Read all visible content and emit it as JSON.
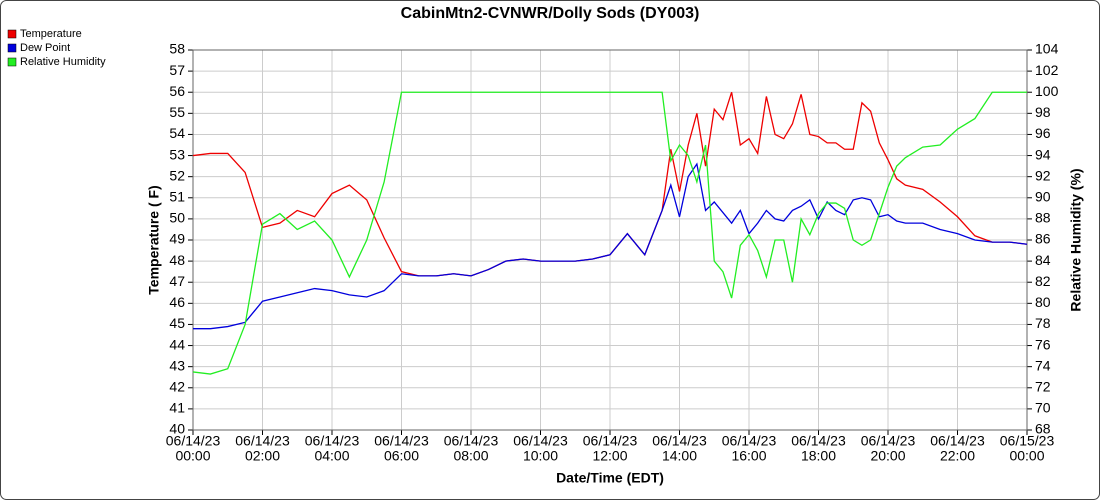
{
  "chart_data": {
    "type": "line",
    "title": "CabinMtn2-CVNWR/Dolly Sods (DY003)",
    "x_label": "Date/Time (EDT)",
    "y_label": "Temperature ( F)",
    "y2_label": "Relative Humidity (%)",
    "legend": "top-left",
    "grid": true,
    "x": [
      0,
      0.5,
      1,
      1.5,
      2,
      2.5,
      3,
      3.5,
      4,
      4.5,
      5,
      5.5,
      6,
      6.5,
      7,
      7.5,
      8,
      8.5,
      9,
      9.5,
      10,
      10.5,
      11,
      11.5,
      12,
      12.5,
      13,
      13.5,
      13.75,
      14,
      14.25,
      14.5,
      14.75,
      15,
      15.25,
      15.5,
      15.75,
      16,
      16.25,
      16.5,
      16.75,
      17,
      17.25,
      17.5,
      17.75,
      18,
      18.25,
      18.5,
      18.75,
      19,
      19.25,
      19.5,
      19.75,
      20,
      20.25,
      20.5,
      21,
      21.5,
      22,
      22.5,
      23,
      23.5,
      24
    ],
    "xlim": [
      0,
      24
    ],
    "xticks": [
      {
        "value": 0,
        "label": [
          "06/14/23",
          "00:00"
        ]
      },
      {
        "value": 2,
        "label": [
          "06/14/23",
          "02:00"
        ]
      },
      {
        "value": 4,
        "label": [
          "06/14/23",
          "04:00"
        ]
      },
      {
        "value": 6,
        "label": [
          "06/14/23",
          "06:00"
        ]
      },
      {
        "value": 8,
        "label": [
          "06/14/23",
          "08:00"
        ]
      },
      {
        "value": 10,
        "label": [
          "06/14/23",
          "10:00"
        ]
      },
      {
        "value": 12,
        "label": [
          "06/14/23",
          "12:00"
        ]
      },
      {
        "value": 14,
        "label": [
          "06/14/23",
          "14:00"
        ]
      },
      {
        "value": 16,
        "label": [
          "06/14/23",
          "16:00"
        ]
      },
      {
        "value": 18,
        "label": [
          "06/14/23",
          "18:00"
        ]
      },
      {
        "value": 20,
        "label": [
          "06/14/23",
          "20:00"
        ]
      },
      {
        "value": 22,
        "label": [
          "06/14/23",
          "22:00"
        ]
      },
      {
        "value": 24,
        "label": [
          "06/15/23",
          "00:00"
        ]
      }
    ],
    "ylim": [
      40,
      58
    ],
    "yticks": [
      40,
      41,
      42,
      43,
      44,
      45,
      46,
      47,
      48,
      49,
      50,
      51,
      52,
      53,
      54,
      55,
      56,
      57,
      58
    ],
    "y2lim": [
      68,
      104
    ],
    "y2ticks": [
      68,
      70,
      72,
      74,
      76,
      78,
      80,
      82,
      84,
      86,
      88,
      90,
      92,
      94,
      96,
      98,
      100,
      102,
      104
    ],
    "series": [
      {
        "name": "Temperature",
        "color": "#ee0000",
        "values": [
          53.0,
          53.1,
          53.1,
          52.2,
          49.6,
          49.8,
          50.4,
          50.1,
          51.2,
          51.6,
          50.9,
          49.1,
          47.5,
          47.3,
          47.3,
          47.4,
          47.3,
          47.6,
          48.0,
          48.1,
          48.0,
          48.0,
          48.0,
          48.1,
          48.3,
          49.3,
          48.3,
          50.4,
          53.3,
          51.3,
          53.5,
          55.0,
          52.5,
          55.2,
          54.7,
          56.0,
          53.5,
          53.8,
          53.1,
          55.8,
          54.0,
          53.8,
          54.5,
          55.9,
          54.0,
          53.9,
          53.6,
          53.6,
          53.3,
          53.3,
          55.5,
          55.1,
          53.6,
          52.8,
          51.9,
          51.6,
          51.4,
          50.8,
          50.1,
          49.2,
          48.9,
          48.9,
          48.8
        ]
      },
      {
        "name": "Dew Point",
        "color": "#0000dd",
        "values": [
          44.8,
          44.8,
          44.9,
          45.1,
          46.1,
          46.3,
          46.5,
          46.7,
          46.6,
          46.4,
          46.3,
          46.6,
          47.4,
          47.3,
          47.3,
          47.4,
          47.3,
          47.6,
          48.0,
          48.1,
          48.0,
          48.0,
          48.0,
          48.1,
          48.3,
          49.3,
          48.3,
          50.4,
          51.6,
          50.1,
          52.0,
          52.6,
          50.4,
          50.8,
          50.3,
          49.8,
          50.4,
          49.3,
          49.8,
          50.4,
          50.0,
          49.9,
          50.4,
          50.6,
          50.9,
          50.0,
          50.8,
          50.4,
          50.2,
          50.9,
          51.0,
          50.9,
          50.1,
          50.2,
          49.9,
          49.8,
          49.8,
          49.5,
          49.3,
          49.0,
          48.9,
          48.9,
          48.8
        ]
      },
      {
        "name": "Relative Humidity",
        "color": "#22ee22",
        "axis": "y2",
        "values": [
          73.5,
          73.3,
          73.8,
          78.0,
          87.5,
          88.5,
          87.0,
          87.8,
          86.0,
          82.5,
          86.0,
          91.5,
          100,
          100,
          100,
          100,
          100,
          100,
          100,
          100,
          100,
          100,
          100,
          100,
          100,
          100,
          100,
          100,
          93.5,
          95.0,
          94.0,
          91.5,
          95.0,
          84.0,
          83.0,
          80.5,
          85.5,
          86.5,
          85.0,
          82.5,
          86.0,
          86.0,
          82.0,
          88.0,
          86.5,
          88.5,
          89.5,
          89.5,
          89.0,
          86.0,
          85.5,
          86.0,
          88.5,
          91.0,
          93.0,
          93.8,
          94.8,
          95.0,
          96.5,
          97.5,
          100,
          100,
          100
        ]
      }
    ]
  }
}
